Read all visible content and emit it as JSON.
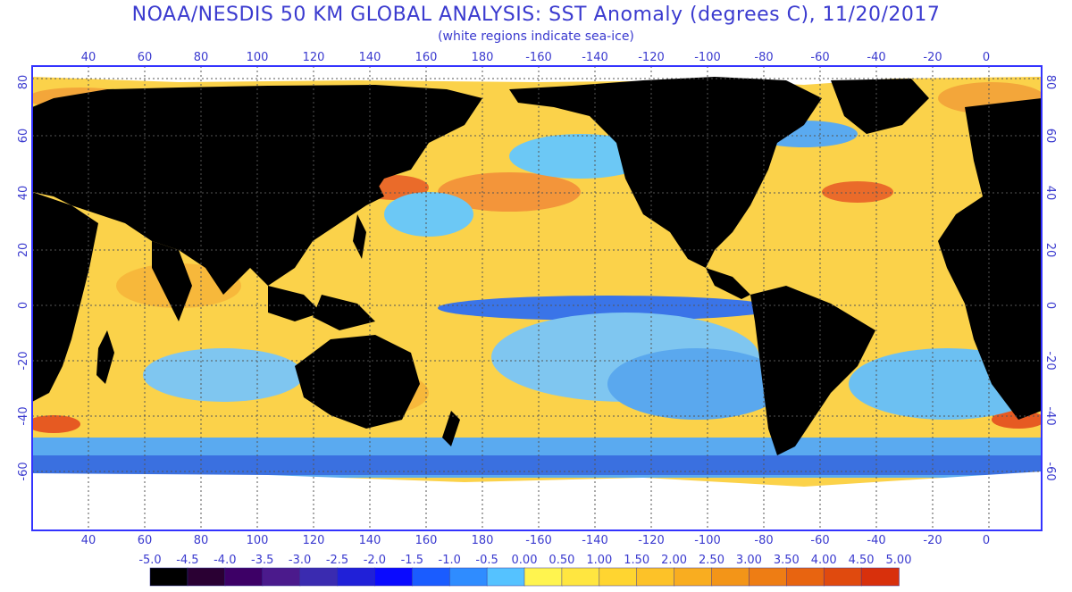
{
  "header": {
    "title": "NOAA/NESDIS 50 KM GLOBAL ANALYSIS: SST Anomaly (degrees C), 11/20/2017",
    "subtitle": "(white regions indicate sea-ice)"
  },
  "map": {
    "top_lon_labels": [
      "40",
      "60",
      "80",
      "100",
      "120",
      "140",
      "160",
      "180",
      "-160",
      "-140",
      "-120",
      "-100",
      "-80",
      "-60",
      "-40",
      "-20",
      "0"
    ],
    "bottom_lon_labels": [
      "40",
      "60",
      "80",
      "100",
      "120",
      "140",
      "160",
      "180",
      "-160",
      "-140",
      "-120",
      "-100",
      "-80",
      "-60",
      "-40",
      "-20",
      "0"
    ],
    "left_lat_labels": [
      "80",
      "60",
      "40",
      "20",
      "0",
      "-20",
      "-40",
      "-60"
    ],
    "right_lat_labels": [
      "80",
      "60",
      "40",
      "20",
      "0",
      "-20",
      "-40",
      "-60"
    ],
    "colors": {
      "land": "#000000",
      "sea_ice": "#ffffff",
      "grid": "#444444",
      "frame": "#3333ff"
    }
  },
  "colorbar": {
    "labels": [
      "-5.0",
      "-4.5",
      "-4.0",
      "-3.5",
      "-3.0",
      "-2.5",
      "-2.0",
      "-1.5",
      "-1.0",
      "-0.5",
      "0.00",
      "0.50",
      "1.00",
      "1.50",
      "2.00",
      "2.50",
      "3.00",
      "3.50",
      "4.00",
      "4.50",
      "5.00"
    ],
    "colors": [
      "#000000",
      "#2a0033",
      "#3d0066",
      "#4b1a8c",
      "#3a2bb0",
      "#2020d8",
      "#0a0aff",
      "#1a5cff",
      "#2f8cff",
      "#55c2ff",
      "#fff44f",
      "#ffe640",
      "#ffd530",
      "#fdc228",
      "#f9ad20",
      "#f39518",
      "#ee7d14",
      "#e86410",
      "#e04a0e",
      "#d8300c"
    ]
  }
}
